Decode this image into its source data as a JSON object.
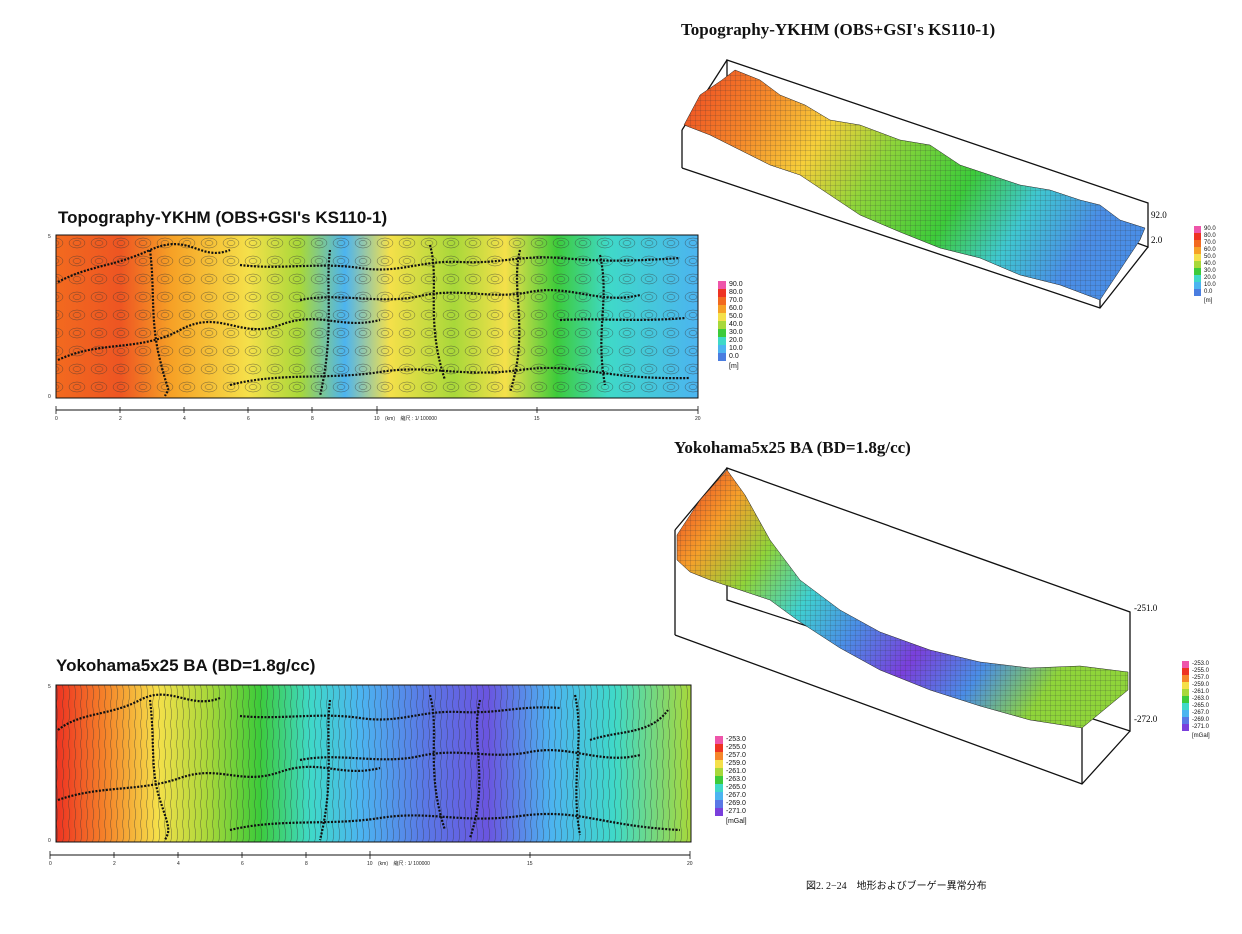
{
  "panels": {
    "topo_map": {
      "title": "Topography-YKHM (OBS+GSI's KS110-1)",
      "y_labels": [
        "5",
        "0"
      ],
      "x_ticks": [
        "0",
        "2",
        "4",
        "6",
        "8",
        "10",
        "15",
        "20"
      ],
      "scale_text": "(km)    縮尺 : 1/ 100000"
    },
    "topo_3d": {
      "title": "Topography-YKHM (OBS+GSI's KS110-1)",
      "z_max": "92.0",
      "z_min": "2.0"
    },
    "ba_map": {
      "title": "Yokohama5x25 BA (BD=1.8g/cc)",
      "y_labels": [
        "5",
        "0"
      ],
      "x_ticks": [
        "0",
        "2",
        "4",
        "6",
        "8",
        "10",
        "15",
        "20"
      ],
      "scale_text": "(km)    縮尺 : 1/ 100000"
    },
    "ba_3d": {
      "title": "Yokohama5x25 BA (BD=1.8g/cc)",
      "z_max": "-251.0",
      "z_min": "-272.0"
    }
  },
  "legends": {
    "topo": {
      "values": [
        "90.0",
        "80.0",
        "70.0",
        "60.0",
        "50.0",
        "40.0",
        "30.0",
        "20.0",
        "10.0",
        "0.0"
      ],
      "colors": [
        "#ee55aa",
        "#ee3322",
        "#f26a1f",
        "#f6a126",
        "#f5e04a",
        "#a8d83a",
        "#3dcb3a",
        "#3fd9c8",
        "#4cb4f0",
        "#4a7de0"
      ],
      "unit": "[m]"
    },
    "ba": {
      "values": [
        "-253.0",
        "-255.0",
        "-257.0",
        "-259.0",
        "-261.0",
        "-263.0",
        "-265.0",
        "-267.0",
        "-269.0",
        "-271.0"
      ],
      "colors": [
        "#ee55aa",
        "#ee3322",
        "#f5862a",
        "#f5e04a",
        "#a8d83a",
        "#3dcb3a",
        "#3fd9c8",
        "#4cb4f0",
        "#5a78e6",
        "#7a3fdc"
      ],
      "unit": "[mGal]"
    }
  },
  "caption": "図2. 2−24　地形およびブーゲー異常分布"
}
